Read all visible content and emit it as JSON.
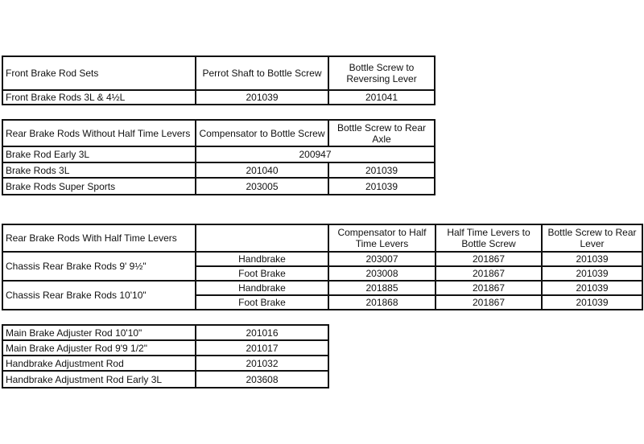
{
  "front_table": {
    "headers": [
      "Front Brake Rod Sets",
      "Perrot Shaft to Bottle Screw",
      "Bottle Screw to Reversing Lever"
    ],
    "rows": [
      {
        "label": "Front Brake Rods 3L & 4½L",
        "values": [
          "201039",
          "201041"
        ]
      }
    ]
  },
  "rear_without_table": {
    "headers": [
      "Rear Brake Rods Without Half Time Levers",
      "Compensator to Bottle Screw",
      "Bottle Screw to Rear Axle"
    ],
    "rows": [
      {
        "label": "Brake Rod Early 3L",
        "values": [
          "200947"
        ]
      },
      {
        "label": "Brake Rods 3L",
        "values": [
          "201040",
          "201039"
        ]
      },
      {
        "label": "Brake Rods Super Sports",
        "values": [
          "203005",
          "201039"
        ]
      }
    ]
  },
  "rear_with_table": {
    "headers": [
      "Rear Brake Rods With Half Time Levers",
      "",
      "Compensator to Half Time Levers",
      "Half Time Levers to Bottle Screw",
      "Bottle Screw to Rear Lever"
    ],
    "groups": [
      {
        "label": "Chassis Rear Brake Rods 9' 9½\"",
        "rows": [
          {
            "type": "Handbrake",
            "values": [
              "203007",
              "201867",
              "201039"
            ]
          },
          {
            "type": "Foot Brake",
            "values": [
              "203008",
              "201867",
              "201039"
            ]
          }
        ]
      },
      {
        "label": "Chassis Rear Brake Rods 10'10\"",
        "rows": [
          {
            "type": "Handbrake",
            "values": [
              "201885",
              "201867",
              "201039"
            ]
          },
          {
            "type": "Foot Brake",
            "values": [
              "201868",
              "201867",
              "201039"
            ]
          }
        ]
      }
    ]
  },
  "adjuster_table": {
    "rows": [
      {
        "label": "Main Brake Adjuster Rod 10'10\"",
        "value": "201016"
      },
      {
        "label": "Main Brake Adjuster Rod 9'9 1/2\"",
        "value": "201017"
      },
      {
        "label": "Handbrake Adjustment Rod",
        "value": "201032"
      },
      {
        "label": "Handbrake Adjustment Rod Early 3L",
        "value": "203608"
      }
    ]
  }
}
